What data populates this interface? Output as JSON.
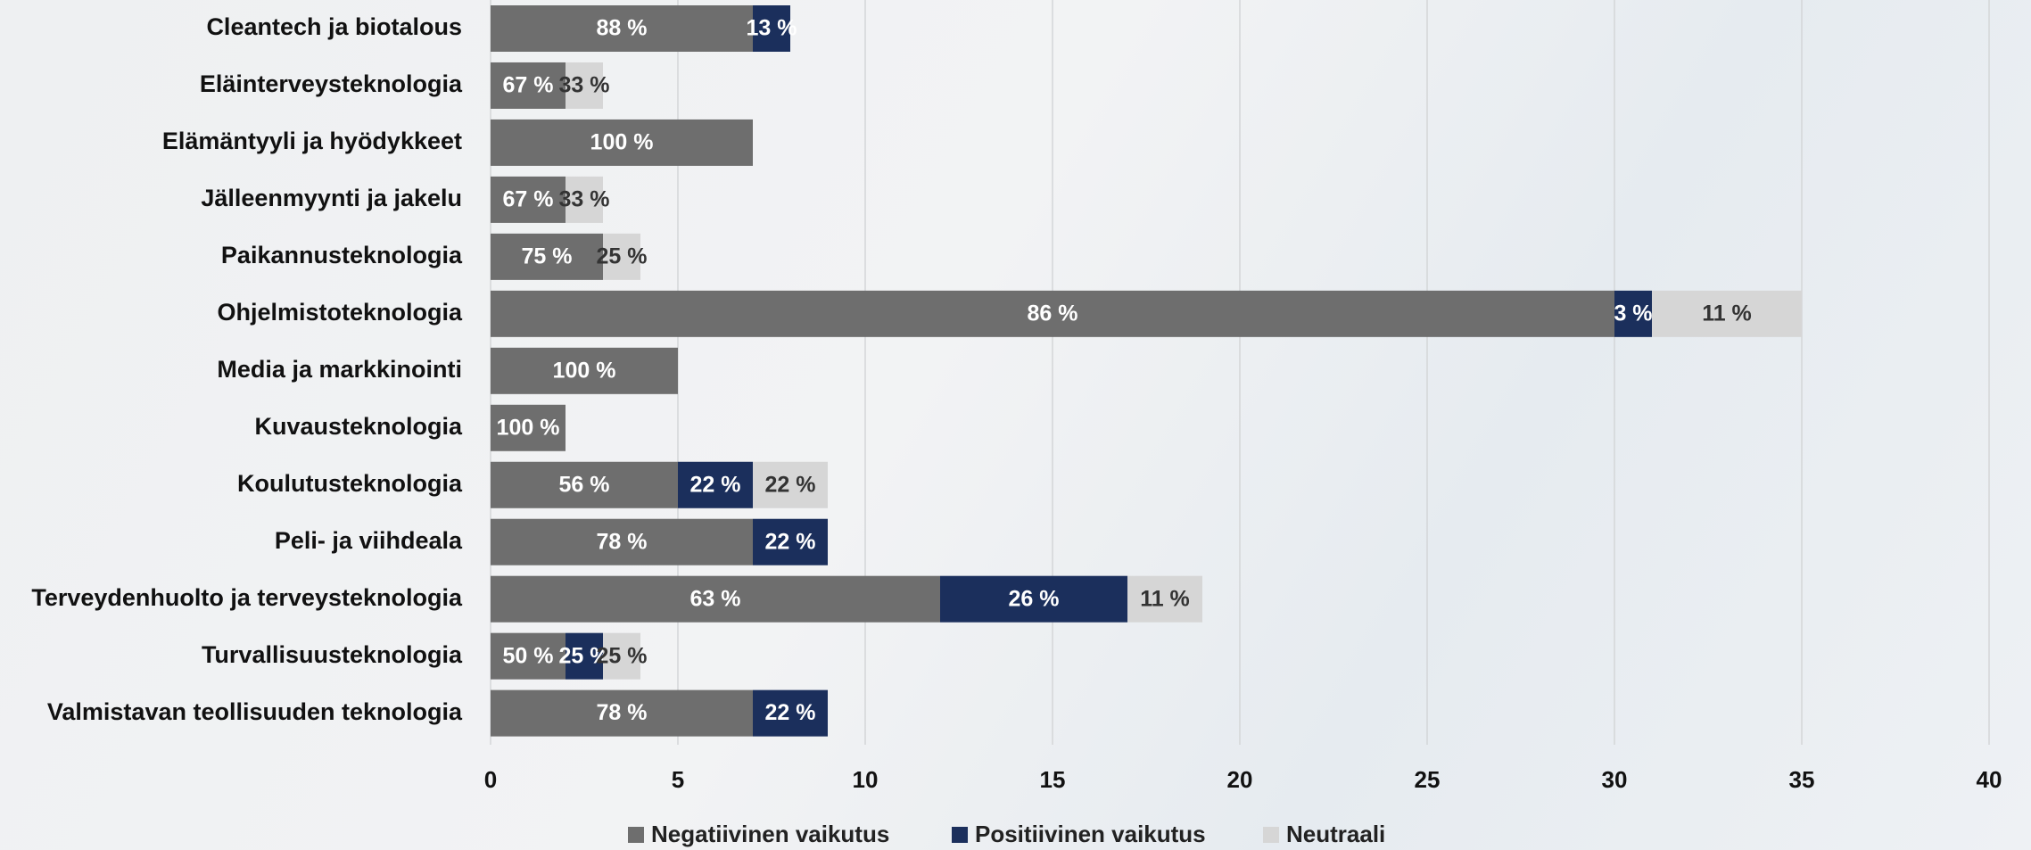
{
  "chart_data": {
    "type": "stacked-barh",
    "categories": [
      "Cleantech ja biotalous",
      "Eläinterveysteknologia",
      "Elämäntyyli ja hyödykkeet",
      "Jälleenmyynti ja jakelu",
      "Paikannusteknologia",
      "Ohjelmistoteknologia",
      "Media ja markkinointi",
      "Kuvausteknologia",
      "Koulutusteknologia",
      "Peli- ja viihdeala",
      "Terveydenhuolto ja terveysteknologia",
      "Turvallisuusteknologia",
      "Valmistavan teollisuuden teknologia"
    ],
    "series": [
      {
        "name": "Negatiivinen vaikutus",
        "color": "#6e6e6e",
        "values": [
          7,
          2,
          7,
          2,
          3,
          30,
          5,
          2,
          5,
          7,
          12,
          2,
          7
        ],
        "value_labels": [
          "88 %",
          "67 %",
          "100 %",
          "67 %",
          "75 %",
          "86 %",
          "100 %",
          "100 %",
          "56 %",
          "78 %",
          "63 %",
          "50 %",
          "78 %"
        ]
      },
      {
        "name": "Positiivinen vaikutus",
        "color": "#1b2f5c",
        "values": [
          1,
          null,
          null,
          null,
          null,
          1,
          null,
          null,
          2,
          2,
          5,
          1,
          2
        ],
        "value_labels": [
          "13 %",
          null,
          null,
          null,
          null,
          "3 %",
          null,
          null,
          "22 %",
          "22 %",
          "26 %",
          "25 %",
          "22 %"
        ]
      },
      {
        "name": "Neutraali",
        "color": "#d6d6d6",
        "values": [
          null,
          1,
          null,
          1,
          1,
          4,
          null,
          null,
          2,
          null,
          2,
          1,
          null
        ],
        "value_labels": [
          null,
          "33 %",
          null,
          "33 %",
          "25 %",
          "11 %",
          null,
          null,
          "22 %",
          null,
          "11 %",
          "25 %",
          null
        ]
      }
    ],
    "xlim": [
      0,
      40
    ],
    "xticks": [
      0,
      5,
      10,
      15,
      20,
      25,
      30,
      35,
      40
    ],
    "grid": true,
    "legend": "bottom"
  }
}
